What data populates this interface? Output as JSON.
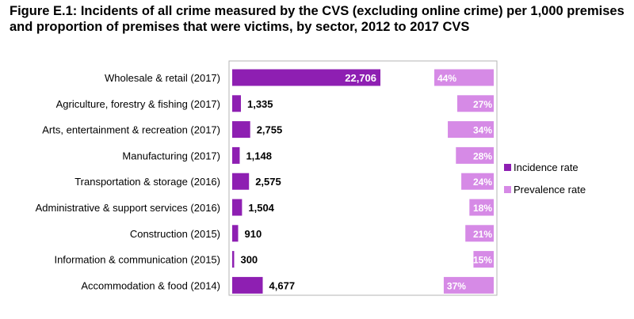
{
  "figure_title": "Figure E.1: Incidents of all crime measured by the CVS (excluding online crime) per 1,000 premises and proportion of premises that were victims, by sector, 2012 to 2017 CVS",
  "chart_data": {
    "type": "bar",
    "title": "",
    "xlabel": "",
    "ylabel": "",
    "grid": false,
    "legend_position": "right",
    "categories": [
      "Wholesale & retail (2017)",
      "Agriculture, forestry & fishing (2017)",
      "Arts, entertainment & recreation (2017)",
      "Manufacturing (2017)",
      "Transportation & storage (2016)",
      "Administrative & support services (2016)",
      "Construction (2015)",
      "Information & communication (2015)",
      "Accommodation & food (2014)"
    ],
    "series": [
      {
        "name": "Incidence rate",
        "color": "#8e1fb2",
        "values": [
          22706,
          1335,
          2755,
          1148,
          2575,
          1504,
          910,
          300,
          4677
        ],
        "labels": [
          "22,706",
          "1,335",
          "2,755",
          "1,148",
          "2,575",
          "1,504",
          "910",
          "300",
          "4,677"
        ]
      },
      {
        "name": "Prevalence rate",
        "color": "#d68ae6",
        "values": [
          44,
          27,
          34,
          28,
          24,
          18,
          21,
          15,
          37
        ],
        "labels": [
          "44%",
          "27%",
          "34%",
          "28%",
          "24%",
          "18%",
          "21%",
          "15%",
          "37%"
        ]
      }
    ]
  }
}
